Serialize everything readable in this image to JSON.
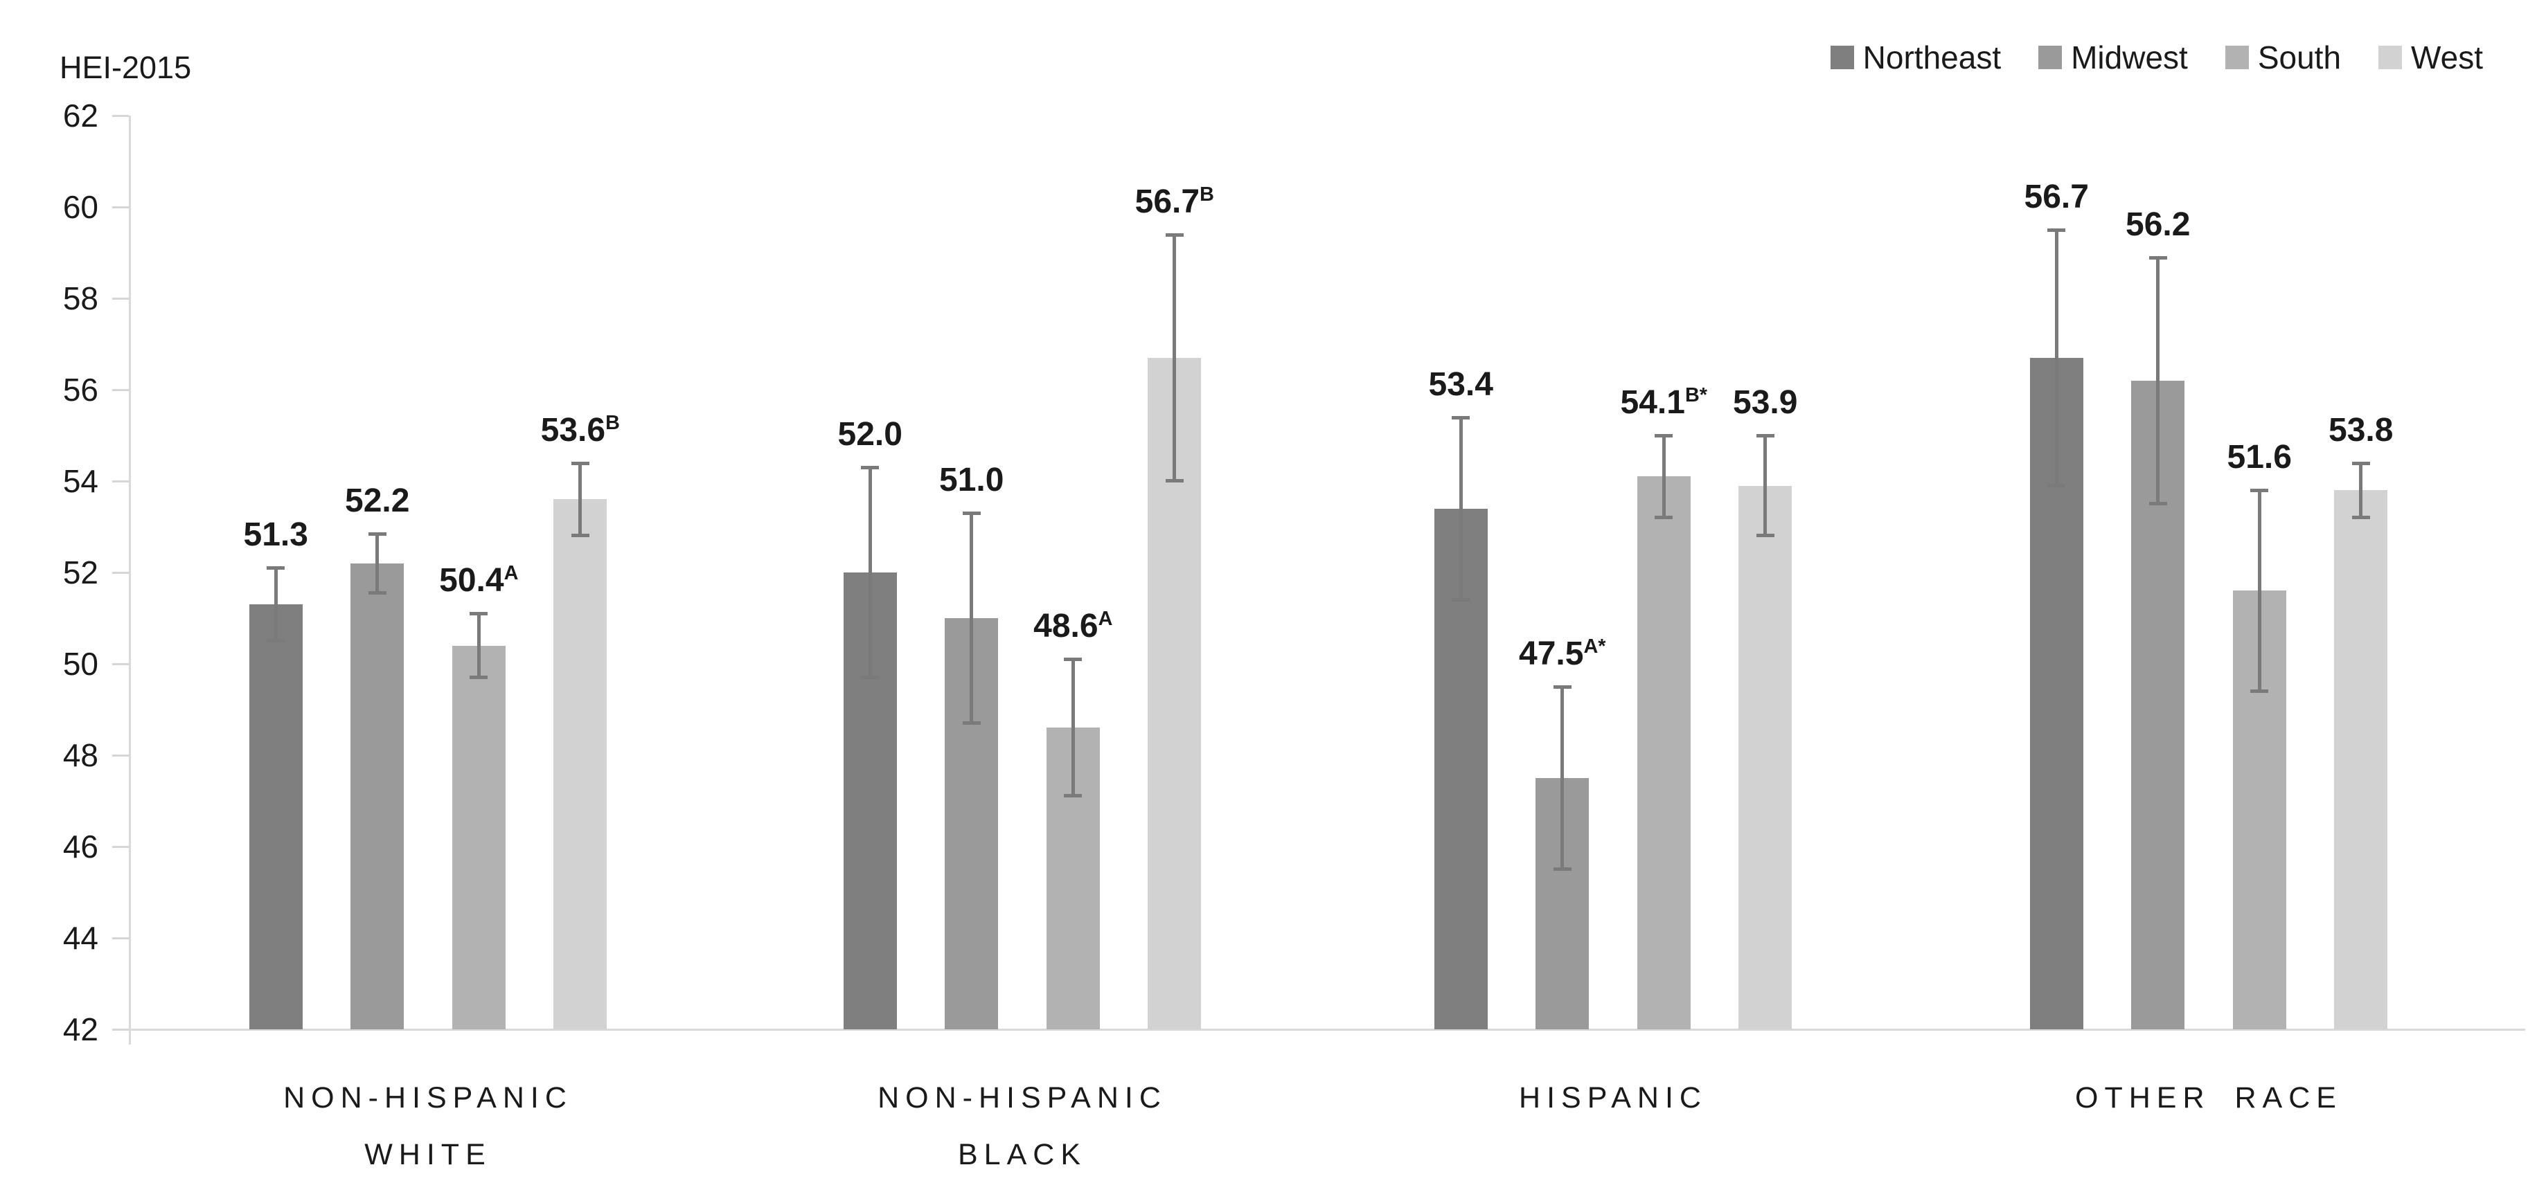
{
  "chart_data": {
    "type": "bar",
    "title": "",
    "ylabel": "HEI-2015",
    "ylim": [
      42,
      62
    ],
    "ytick_step": 2,
    "yticks": [
      62,
      60,
      58,
      56,
      54,
      52,
      50,
      48,
      46,
      44,
      42
    ],
    "grid": false,
    "legend_position": "top-right",
    "background": "#ffffff",
    "axis_color": "#d9d9d9",
    "error_bar_color": "#7a7a7a",
    "categories": [
      "NON-HISPANIC WHITE",
      "NON-HISPANIC BLACK",
      "HISPANIC",
      "OTHER RACE"
    ],
    "category_lines": [
      [
        "NON-HISPANIC",
        "WHITE"
      ],
      [
        "NON-HISPANIC",
        "BLACK"
      ],
      [
        "HISPANIC"
      ],
      [
        "OTHER RACE"
      ]
    ],
    "series": [
      {
        "name": "Northeast",
        "color": "#7f7f7f",
        "values": [
          51.3,
          52.0,
          53.4,
          56.7
        ],
        "markers": [
          "",
          "",
          "",
          ""
        ],
        "error": [
          0.8,
          2.3,
          2.0,
          2.8
        ]
      },
      {
        "name": "Midwest",
        "color": "#9a9a9a",
        "values": [
          52.2,
          51.0,
          47.5,
          56.2
        ],
        "markers": [
          "",
          "",
          "A*",
          ""
        ],
        "error": [
          0.65,
          2.3,
          2.0,
          2.7
        ]
      },
      {
        "name": "South",
        "color": "#b2b2b2",
        "values": [
          50.4,
          48.6,
          54.1,
          51.6
        ],
        "markers": [
          "A",
          "A",
          "B*",
          ""
        ],
        "error": [
          0.7,
          1.5,
          0.9,
          2.2
        ]
      },
      {
        "name": "West",
        "color": "#d2d2d2",
        "values": [
          53.6,
          56.7,
          53.9,
          53.8
        ],
        "markers": [
          "B",
          "B",
          "",
          ""
        ],
        "error": [
          0.8,
          2.7,
          1.1,
          0.6
        ]
      }
    ]
  }
}
